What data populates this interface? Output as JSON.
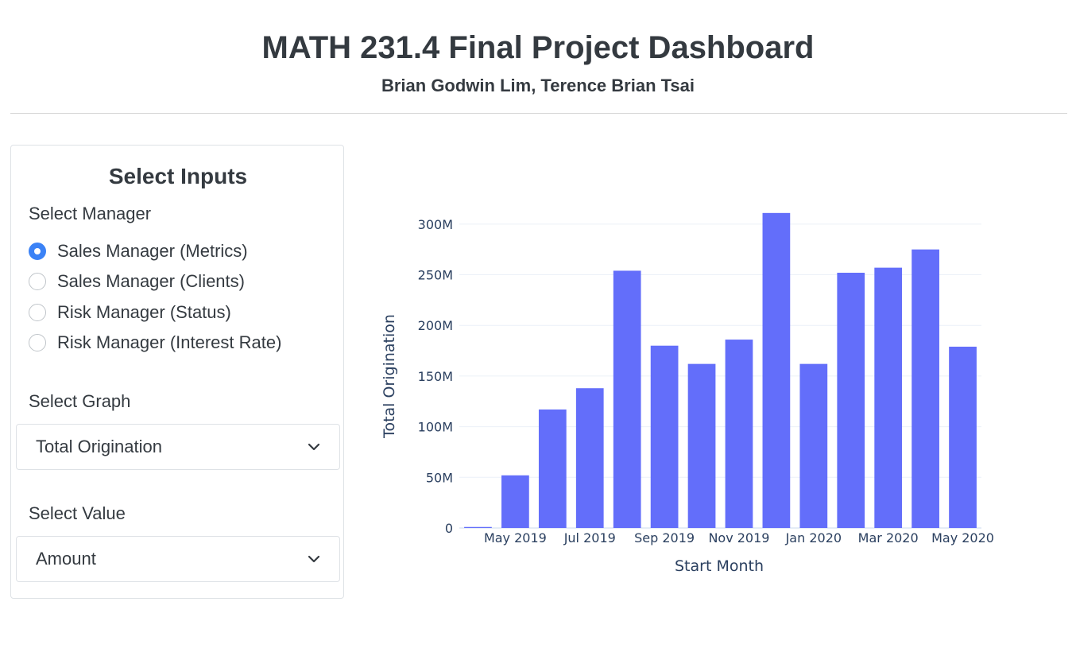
{
  "header": {
    "title": "MATH 231.4 Final Project Dashboard",
    "subtitle": "Brian Godwin Lim, Terence Brian Tsai"
  },
  "inputs": {
    "card_title": "Select Inputs",
    "manager_label": "Select Manager",
    "managers": [
      {
        "label": "Sales Manager (Metrics)",
        "checked": true
      },
      {
        "label": "Sales Manager (Clients)",
        "checked": false
      },
      {
        "label": "Risk Manager (Status)",
        "checked": false
      },
      {
        "label": "Risk Manager (Interest Rate)",
        "checked": false
      }
    ],
    "graph_label": "Select Graph",
    "graph_value": "Total Origination",
    "value_label": "Select Value",
    "value_value": "Amount"
  },
  "colors": {
    "bar": "#636efa",
    "radio_checked": "#3b82f6",
    "grid": "#ebf0f8",
    "axis_text": "#2a3f5f"
  },
  "chart_data": {
    "type": "bar",
    "xlabel": "Start Month",
    "ylabel": "Total Origination",
    "categories": [
      "Apr 2019",
      "May 2019",
      "Jun 2019",
      "Jul 2019",
      "Aug 2019",
      "Sep 2019",
      "Oct 2019",
      "Nov 2019",
      "Dec 2019",
      "Jan 2020",
      "Feb 2020",
      "Mar 2020",
      "Apr 2020",
      "May 2020"
    ],
    "values": [
      1000000,
      52000000,
      117000000,
      138000000,
      254000000,
      180000000,
      162000000,
      186000000,
      311000000,
      162000000,
      252000000,
      257000000,
      275000000,
      179000000
    ],
    "ylim": [
      0,
      325000000
    ],
    "yticks": [
      0,
      50000000,
      100000000,
      150000000,
      200000000,
      250000000,
      300000000
    ],
    "ytick_labels": [
      "0",
      "50M",
      "100M",
      "150M",
      "200M",
      "250M",
      "300M"
    ],
    "xtick_labels": [
      "May 2019",
      "Jul 2019",
      "Sep 2019",
      "Nov 2019",
      "Jan 2020",
      "Mar 2020",
      "May 2020"
    ],
    "xtick_categories": [
      "May 2019",
      "Jul 2019",
      "Sep 2019",
      "Nov 2019",
      "Jan 2020",
      "Mar 2020",
      "May 2020"
    ],
    "grid": true,
    "legend": "none"
  }
}
